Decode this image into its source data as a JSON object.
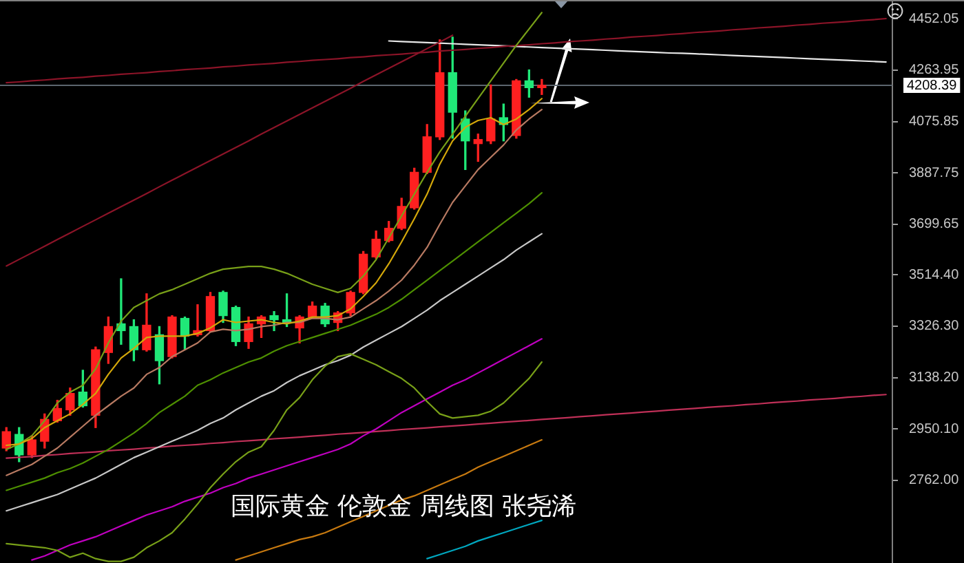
{
  "chart_data": {
    "type": "candlestick",
    "title": "国际黄金 伦敦金 周线图 张尧浠",
    "categories": [
      null,
      null,
      null,
      null,
      null,
      null,
      null,
      null,
      null,
      null,
      null,
      null,
      null,
      null,
      null,
      null,
      null,
      null,
      null,
      null,
      null,
      null,
      null,
      null,
      null,
      null,
      null,
      null,
      null,
      null,
      null,
      null,
      null,
      null,
      null,
      null,
      null,
      null,
      null,
      null,
      null,
      null,
      null,
      null,
      null,
      null,
      null,
      null,
      null,
      null,
      null,
      null,
      null,
      null,
      null,
      null,
      null,
      null,
      null,
      null,
      null,
      null,
      null,
      null,
      null,
      null,
      null,
      null,
      null,
      null
    ],
    "ohlc": [
      [
        2880,
        2955,
        2870,
        2940
      ],
      [
        2930,
        2955,
        2830,
        2855
      ],
      [
        2855,
        2925,
        2845,
        2910
      ],
      [
        2905,
        3005,
        2880,
        2985
      ],
      [
        2980,
        3055,
        2975,
        3025
      ],
      [
        3020,
        3100,
        3000,
        3080
      ],
      [
        3085,
        3165,
        3030,
        3035
      ],
      [
        3000,
        3250,
        2955,
        3240
      ],
      [
        3230,
        3360,
        3190,
        3325
      ],
      [
        3335,
        3500,
        3260,
        3310
      ],
      [
        3325,
        3350,
        3200,
        3240
      ],
      [
        3240,
        3445,
        3235,
        3330
      ],
      [
        3295,
        3325,
        3115,
        3200
      ],
      [
        3215,
        3365,
        3210,
        3360
      ],
      [
        3355,
        3360,
        3240,
        3290
      ],
      [
        3295,
        3405,
        3290,
        3310
      ],
      [
        3310,
        3450,
        3305,
        3435
      ],
      [
        3450,
        3455,
        3340,
        3365
      ],
      [
        3395,
        3400,
        3255,
        3270
      ],
      [
        3270,
        3360,
        3245,
        3335
      ],
      [
        3335,
        3365,
        3285,
        3360
      ],
      [
        3365,
        3380,
        3310,
        3350
      ],
      [
        3350,
        3445,
        3325,
        3340
      ],
      [
        3320,
        3365,
        3265,
        3360
      ],
      [
        3360,
        3415,
        3355,
        3400
      ],
      [
        3400,
        3410,
        3325,
        3335
      ],
      [
        3340,
        3380,
        3310,
        3375
      ],
      [
        3375,
        3455,
        3365,
        3450
      ],
      [
        3450,
        3600,
        3445,
        3590
      ],
      [
        3580,
        3675,
        3575,
        3645
      ],
      [
        3640,
        3710,
        3635,
        3685
      ],
      [
        3685,
        3795,
        3680,
        3765
      ],
      [
        3760,
        3905,
        3755,
        3890
      ],
      [
        3890,
        4065,
        3885,
        4020
      ],
      [
        4020,
        4375,
        4010,
        4255
      ],
      [
        4255,
        4385,
        4015,
        4110
      ],
      [
        4085,
        4115,
        3900,
        4005
      ],
      [
        3995,
        4030,
        3930,
        4010
      ],
      [
        4005,
        4210,
        3995,
        4085
      ],
      [
        4090,
        4140,
        4005,
        4065
      ],
      [
        4025,
        4230,
        4015,
        4225
      ],
      [
        4225,
        4265,
        4165,
        4200
      ],
      [
        4200,
        4230,
        4175,
        4208.39
      ],
      null,
      null,
      null,
      null,
      null,
      null,
      null,
      null,
      null,
      null,
      null,
      null,
      null,
      null,
      null,
      null,
      null,
      null,
      null,
      null,
      null,
      null,
      null,
      null,
      null,
      null,
      null
    ],
    "colors": [
      "#ff2020",
      "#20e878",
      "#ff2020",
      "#ff2020",
      "#ff2020",
      "#ff2020",
      "#20e878",
      "#ff2020",
      "#ff2020",
      "#20e878",
      "#20e878",
      "#ff2020",
      "#20e878",
      "#ff2020",
      "#20e878",
      "#ff2020",
      "#ff2020",
      "#20e878",
      "#20e878",
      "#ff2020",
      "#ff2020",
      "#20e878",
      "#20e878",
      "#ff2020",
      "#ff2020",
      "#20e878",
      "#ff2020",
      "#ff2020",
      "#ff2020",
      "#ff2020",
      "#ff2020",
      "#ff2020",
      "#ff2020",
      "#ff2020",
      "#ff2020",
      "#20e878",
      "#20e878",
      "#ff2020",
      "#ff2020",
      "#20e878",
      "#ff2020",
      "#20e878",
      "#ff2020",
      null,
      null,
      null,
      null,
      null,
      null,
      null,
      null,
      null,
      null,
      null,
      null,
      null,
      null,
      null,
      null,
      null,
      null,
      null,
      null,
      null,
      null,
      null,
      null,
      null,
      null,
      null
    ],
    "series": [
      {
        "type": "line",
        "color": "#d4a80a",
        "values": [
          2890,
          2895,
          2915,
          2955,
          2980,
          3005,
          3040,
          3080,
          3150,
          3210,
          3245,
          3285,
          3290,
          3290,
          3290,
          3300,
          3320,
          3350,
          3340,
          3345,
          3350,
          3340,
          3335,
          3345,
          3360,
          3360,
          3365,
          3390,
          3435,
          3485,
          3555,
          3635,
          3720,
          3810,
          3920,
          4005,
          4055,
          4080,
          4090,
          4065,
          4085,
          4120,
          4160,
          null,
          null,
          null,
          null,
          null,
          null,
          null,
          null,
          null,
          null,
          null,
          null,
          null,
          null,
          null,
          null,
          null,
          null,
          null,
          null,
          null,
          null,
          null,
          null,
          null,
          null,
          null
        ]
      },
      {
        "type": "line",
        "color": "#b87a62",
        "values": [
          2780,
          2800,
          2820,
          2850,
          2880,
          2920,
          2960,
          3000,
          3035,
          3070,
          3100,
          3150,
          3175,
          3215,
          3240,
          3265,
          3305,
          3315,
          3310,
          3315,
          3325,
          3330,
          3340,
          3340,
          3355,
          3355,
          3350,
          3360,
          3390,
          3420,
          3455,
          3495,
          3550,
          3615,
          3700,
          3780,
          3840,
          3900,
          3945,
          3990,
          4045,
          4085,
          4120,
          null,
          null,
          null,
          null,
          null,
          null,
          null,
          null,
          null,
          null,
          null,
          null,
          null,
          null,
          null,
          null,
          null,
          null,
          null,
          null,
          null,
          null,
          null,
          null,
          null,
          null,
          null
        ]
      },
      {
        "type": "line",
        "color": "#78a018",
        "values": [
          2875,
          2895,
          2925,
          2980,
          3045,
          3085,
          3110,
          3170,
          3265,
          3345,
          3395,
          3420,
          3445,
          3460,
          3480,
          3500,
          3520,
          3535,
          3540,
          3545,
          3545,
          3535,
          3520,
          3500,
          3480,
          3465,
          3450,
          3465,
          3510,
          3570,
          3650,
          3730,
          3810,
          3890,
          3965,
          4030,
          4095,
          4160,
          4225,
          4290,
          4355,
          4415,
          4475,
          null,
          null,
          null,
          null,
          null,
          null,
          null,
          null,
          null,
          null,
          null,
          null,
          null,
          null,
          null,
          null,
          null,
          null,
          null,
          null,
          null,
          null,
          null,
          null,
          null,
          null,
          null
        ]
      },
      {
        "type": "line",
        "color": "#4e9000",
        "values": [
          2725,
          2740,
          2755,
          2770,
          2790,
          2805,
          2825,
          2850,
          2875,
          2905,
          2935,
          2970,
          3010,
          3040,
          3070,
          3110,
          3130,
          3155,
          3175,
          3195,
          3210,
          3235,
          3255,
          3270,
          3285,
          3300,
          3315,
          3330,
          3350,
          3370,
          3395,
          3425,
          3460,
          3495,
          3530,
          3565,
          3600,
          3635,
          3670,
          3705,
          3740,
          3775,
          3815,
          null,
          null,
          null,
          null,
          null,
          null,
          null,
          null,
          null,
          null,
          null,
          null,
          null,
          null,
          null,
          null,
          null,
          null,
          null,
          null,
          null,
          null,
          null,
          null,
          null,
          null,
          null
        ]
      },
      {
        "type": "line",
        "color": "#78a018",
        "values": [
          2530,
          2525,
          2520,
          2515,
          2505,
          2480,
          2495,
          2475,
          2465,
          2465,
          2480,
          2515,
          2540,
          2570,
          2620,
          2675,
          2735,
          2785,
          2830,
          2865,
          2885,
          2945,
          3020,
          3065,
          3130,
          3180,
          3215,
          3225,
          3205,
          3185,
          3160,
          3135,
          3100,
          3050,
          3005,
          2990,
          2995,
          3000,
          3015,
          3045,
          3090,
          3135,
          3195,
          null,
          null,
          null,
          null,
          null,
          null,
          null,
          null,
          null,
          null,
          null,
          null,
          null,
          null,
          null,
          null,
          null,
          null,
          null,
          null,
          null,
          null,
          null,
          null,
          null,
          null,
          null
        ]
      },
      {
        "type": "line",
        "color": "#c8c8c8",
        "values": [
          2650,
          2665,
          2680,
          2695,
          2710,
          2730,
          2750,
          2770,
          2795,
          2820,
          2845,
          2865,
          2885,
          2905,
          2925,
          2945,
          2970,
          2990,
          3020,
          3045,
          3070,
          3090,
          3120,
          3145,
          3165,
          3185,
          3200,
          3220,
          3250,
          3275,
          3300,
          3325,
          3355,
          3385,
          3420,
          3450,
          3480,
          3510,
          3540,
          3570,
          3605,
          3635,
          3665,
          null,
          null,
          null,
          null,
          null,
          null,
          null,
          null,
          null,
          null,
          null,
          null,
          null,
          null,
          null,
          null,
          null,
          null,
          null,
          null,
          null,
          null,
          null,
          null,
          null,
          null,
          null
        ]
      },
      {
        "type": "line",
        "color": "#c000c0",
        "values": [
          null,
          null,
          2470,
          2485,
          2505,
          2525,
          2540,
          2555,
          2575,
          2595,
          2615,
          2635,
          2650,
          2665,
          2685,
          2700,
          2715,
          2735,
          2750,
          2770,
          2785,
          2800,
          2815,
          2830,
          2845,
          2860,
          2875,
          2895,
          2925,
          2950,
          2980,
          3010,
          3035,
          3060,
          3085,
          3110,
          3130,
          3155,
          3180,
          3205,
          3230,
          3255,
          3280,
          null,
          null,
          null,
          null,
          null,
          null,
          null,
          null,
          null,
          null,
          null,
          null,
          null,
          null,
          null,
          null,
          null,
          null,
          null,
          null,
          null,
          null,
          null,
          null,
          null,
          null,
          null
        ]
      },
      {
        "type": "line",
        "color": "#c87a10",
        "values": [
          null,
          null,
          null,
          null,
          null,
          null,
          null,
          null,
          null,
          null,
          null,
          null,
          null,
          null,
          null,
          null,
          null,
          null,
          2470,
          2485,
          2500,
          2515,
          2530,
          2545,
          2555,
          2570,
          2590,
          2610,
          2630,
          2650,
          2670,
          2690,
          2705,
          2725,
          2745,
          2765,
          2785,
          2810,
          2830,
          2850,
          2870,
          2890,
          2910,
          null,
          null,
          null,
          null,
          null,
          null,
          null,
          null,
          null,
          null,
          null,
          null,
          null,
          null,
          null,
          null,
          null,
          null,
          null,
          null,
          null,
          null,
          null,
          null,
          null,
          null,
          null
        ]
      },
      {
        "type": "line",
        "color": "#00a8c0",
        "values": [
          null,
          null,
          null,
          null,
          null,
          null,
          null,
          null,
          null,
          null,
          null,
          null,
          null,
          null,
          null,
          null,
          null,
          null,
          null,
          null,
          null,
          null,
          null,
          null,
          null,
          null,
          null,
          null,
          null,
          null,
          null,
          null,
          null,
          2475,
          2490,
          2505,
          2520,
          2540,
          2555,
          2570,
          2585,
          2600,
          2615,
          null,
          null,
          null,
          null,
          null,
          null,
          null,
          null,
          null,
          null,
          null,
          null,
          null,
          null,
          null,
          null,
          null,
          null,
          null,
          null,
          null,
          null,
          null,
          null,
          null,
          null,
          null
        ]
      },
      {
        "type": "line",
        "color": "#8c1428",
        "values": [
          4218,
          4221,
          4225,
          4228,
          4232,
          4235,
          4238,
          4242,
          4245,
          4249,
          4252,
          4255,
          4259,
          4262,
          4266,
          4269,
          4272,
          4276,
          4279,
          4283,
          4286,
          4289,
          4293,
          4296,
          4300,
          4303,
          4306,
          4310,
          4313,
          4317,
          4320,
          4323,
          4327,
          4330,
          4334,
          4337,
          4340,
          4344,
          4347,
          4351,
          4354,
          4357,
          4361,
          4364,
          4368,
          4371,
          4374,
          4378,
          4381,
          4385,
          4388,
          4391,
          4395,
          4398,
          4402,
          4405,
          4408,
          4412,
          4415,
          4419,
          4422,
          4425,
          4429,
          4432,
          4436,
          4439,
          4442,
          4446,
          4449,
          4453
        ]
      },
      {
        "type": "line",
        "color": "#8c1428",
        "values": [
          3547,
          3571,
          3595,
          3619,
          3644,
          3668,
          3692,
          3716,
          3740,
          3764,
          3788,
          3812,
          3837,
          3861,
          3885,
          3909,
          3933,
          3957,
          3981,
          4005,
          4030,
          4054,
          4078,
          4102,
          4126,
          4150,
          4174,
          4198,
          4223,
          4247,
          4271,
          4295,
          4319,
          4343,
          4367,
          4392,
          null,
          null,
          null,
          null,
          null,
          null,
          null,
          null,
          null,
          null,
          null,
          null,
          null,
          null,
          null,
          null,
          null,
          null,
          null,
          null,
          null,
          null,
          null,
          null,
          null,
          null,
          null,
          null,
          null,
          null,
          null,
          null,
          null,
          null
        ]
      },
      {
        "type": "line",
        "color": "#e8e8e8",
        "values": [
          null,
          null,
          null,
          null,
          null,
          null,
          null,
          null,
          null,
          null,
          null,
          null,
          null,
          null,
          null,
          null,
          null,
          null,
          null,
          null,
          null,
          null,
          null,
          null,
          null,
          null,
          null,
          null,
          null,
          null,
          4371,
          4369,
          4367,
          4365,
          4363,
          4361,
          4359,
          4357,
          4355,
          4353,
          4351,
          4349,
          4347,
          4345,
          4343,
          4341,
          4339,
          4337,
          4335,
          4333,
          4331,
          4329,
          4327,
          4326,
          4324,
          4322,
          4320,
          4318,
          4316,
          4314,
          4312,
          4310,
          4308,
          4306,
          4304,
          4302,
          4300,
          4298,
          4296,
          4294
        ]
      },
      {
        "type": "line",
        "color": "#c03058",
        "values": [
          2843,
          2846,
          2849,
          2853,
          2856,
          2860,
          2863,
          2866,
          2870,
          2873,
          2876,
          2880,
          2883,
          2887,
          2890,
          2893,
          2897,
          2900,
          2904,
          2907,
          2910,
          2914,
          2917,
          2920,
          2924,
          2927,
          2931,
          2934,
          2937,
          2941,
          2944,
          2948,
          2951,
          2954,
          2958,
          2961,
          2964,
          2968,
          2971,
          2975,
          2978,
          2981,
          2985,
          2988,
          2991,
          2995,
          2998,
          3002,
          3005,
          3008,
          3012,
          3015,
          3019,
          3022,
          3025,
          3029,
          3032,
          3035,
          3039,
          3042,
          3046,
          3049,
          3052,
          3056,
          3059,
          3062,
          3066,
          3069,
          3073,
          3076
        ]
      }
    ],
    "ylim": [
      2459,
      4516
    ],
    "yticks": [
      {
        "value": 2762,
        "label": "2762.00"
      },
      {
        "value": 2950.1,
        "label": "2950.10"
      },
      {
        "value": 3138.2,
        "label": "3138.20"
      },
      {
        "value": 3326.3,
        "label": "3326.30"
      },
      {
        "value": 3514.4,
        "label": "3514.40"
      },
      3699.65,
      3887.75,
      4075.85,
      4263.95,
      4452.05
    ],
    "tick_labels": "y",
    "ref_lines": [
      {
        "axis": "y",
        "value": 4208.39,
        "label": "4208.39",
        "color": "#5c666e"
      }
    ]
  }
}
